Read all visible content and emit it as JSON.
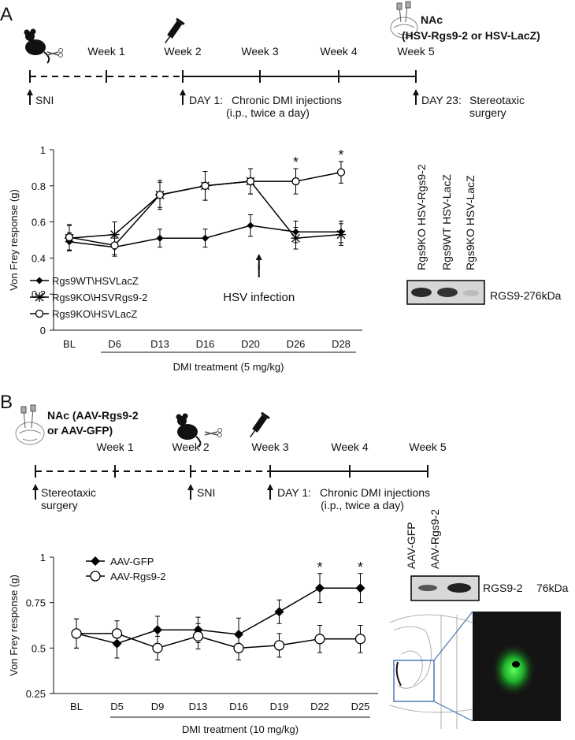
{
  "panel_a": {
    "label": "A",
    "nac": "NAc",
    "injection": "(HSV-Rgs9-2 or HSV-LacZ)",
    "weeks": [
      "Week 1",
      "Week 2",
      "Week 3",
      "Week 4",
      "Week 5"
    ],
    "events": [
      "SNI",
      "DAY 1:",
      "Chronic DMI injections",
      "(i.p., twice a day)",
      "DAY 23:",
      "Stereotaxic",
      "surgery"
    ],
    "blot": {
      "lanes": [
        "Rgs9KO HSV-Rgs9-2",
        "Rgs9WT HSV-LacZ",
        "Rgs9KO HSV-LacZ"
      ],
      "protein": "RGS9-2",
      "size": "76kDa"
    }
  },
  "panel_b": {
    "label": "B",
    "nac": "NAc (AAV-Rgs9-2",
    "nac2": "or AAV-GFP)",
    "weeks": [
      "Week 1",
      "Week 2",
      "Week 3",
      "Week 4",
      "Week 5"
    ],
    "events": [
      "Stereotaxic",
      "surgery",
      "SNI",
      "DAY 1:",
      "Chronic DMI injections",
      "(i.p., twice a day)"
    ],
    "blot": {
      "lanes": [
        "AAV-GFP",
        "AAV-Rgs9-2"
      ],
      "protein": "RGS9-2",
      "size": "76kDa"
    }
  },
  "chart_data": [
    {
      "type": "line",
      "ylabel": "Von Frey response (g)",
      "xlabel": "DMI treatment (5 mg/kg)",
      "categories": [
        "BL",
        "D6",
        "D13",
        "D16",
        "D20",
        "D26",
        "D28"
      ],
      "series": [
        {
          "name": "Rgs9WT\\HSVLacZ",
          "marker": "diamond",
          "color": "#000000",
          "values": [
            0.49,
            0.46,
            0.51,
            0.51,
            0.58,
            0.545,
            0.545
          ],
          "errors": [
            0.05,
            0.05,
            0.05,
            0.05,
            0.06,
            0.06,
            0.06
          ]
        },
        {
          "name": "Rgs9KO\\HSVRgs9-2",
          "marker": "asterisk",
          "color": "#000000",
          "values": [
            0.51,
            0.53,
            0.75,
            0.8,
            0.825,
            0.51,
            0.53
          ],
          "errors": [
            0.07,
            0.07,
            0.07,
            0.08,
            0.07,
            0.06,
            0.06
          ]
        },
        {
          "name": "Rgs9KO\\HSVLacZ",
          "marker": "circle",
          "color": "#000000",
          "values": [
            0.515,
            0.47,
            0.75,
            0.8,
            0.825,
            0.825,
            0.875
          ],
          "errors": [
            0.07,
            0.05,
            0.08,
            0.08,
            0.07,
            0.07,
            0.06
          ]
        }
      ],
      "annotations": [
        {
          "text": "*",
          "x": "D26"
        },
        {
          "text": "*",
          "x": "D28"
        }
      ],
      "note": "HSV infection",
      "ylim": [
        0,
        1
      ],
      "yticks": [
        0,
        0.2,
        0.4,
        0.6,
        0.8,
        1
      ],
      "grid": false
    },
    {
      "type": "line",
      "ylabel": "Von Frey response (g)",
      "xlabel": "DMI treatment (10 mg/kg)",
      "categories": [
        "BL",
        "D5",
        "D9",
        "D13",
        "D16",
        "D19",
        "D22",
        "D25"
      ],
      "series": [
        {
          "name": "AAV-GFP",
          "marker": "diamond",
          "color": "#000000",
          "values": [
            0.58,
            0.525,
            0.6,
            0.6,
            0.575,
            0.7,
            0.83,
            0.83
          ],
          "errors": [
            0.08,
            0.08,
            0.075,
            0.07,
            0.09,
            0.065,
            0.08,
            0.08
          ]
        },
        {
          "name": "AAV-Rgs9-2",
          "marker": "circle",
          "color": "#000000",
          "values": [
            0.58,
            0.58,
            0.5,
            0.565,
            0.5,
            0.515,
            0.55,
            0.55
          ],
          "errors": [
            0.08,
            0.07,
            0.065,
            0.07,
            0.065,
            0.065,
            0.075,
            0.075
          ]
        }
      ],
      "annotations": [
        {
          "text": "*",
          "x": "D22"
        },
        {
          "text": "*",
          "x": "D25"
        }
      ],
      "ylim": [
        0.25,
        1
      ],
      "yticks": [
        0.25,
        0.5,
        0.75,
        1
      ],
      "grid": false
    }
  ]
}
